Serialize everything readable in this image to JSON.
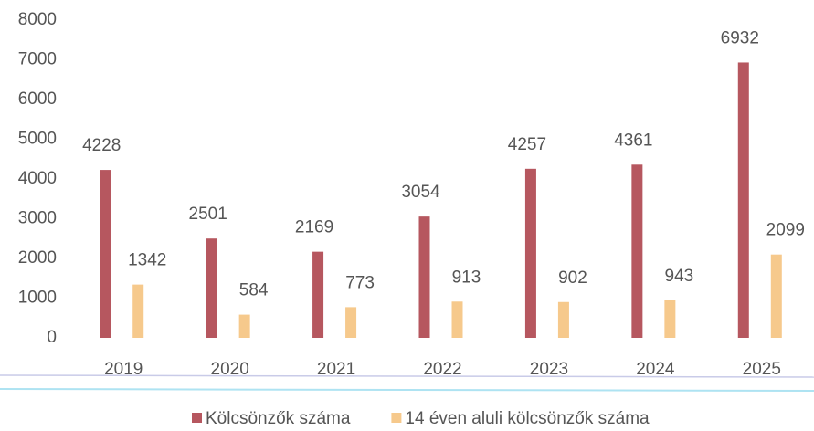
{
  "chart_data": {
    "type": "bar",
    "categories": [
      "2019",
      "2020",
      "2021",
      "2022",
      "2023",
      "2024",
      "2025"
    ],
    "series": [
      {
        "name": "Kölcsönzők száma",
        "color": "#b6575f",
        "values": [
          4228,
          2501,
          2169,
          3054,
          4257,
          4361,
          6932
        ]
      },
      {
        "name": "14 éven aluli kölcsönzők száma",
        "color": "#f6c98c",
        "values": [
          1342,
          584,
          773,
          913,
          902,
          943,
          2099
        ]
      }
    ],
    "ylim": [
      0,
      8000
    ],
    "yticks": [
      0,
      1000,
      2000,
      3000,
      4000,
      5000,
      6000,
      7000,
      8000
    ],
    "grid": false,
    "legend": "bottom"
  }
}
